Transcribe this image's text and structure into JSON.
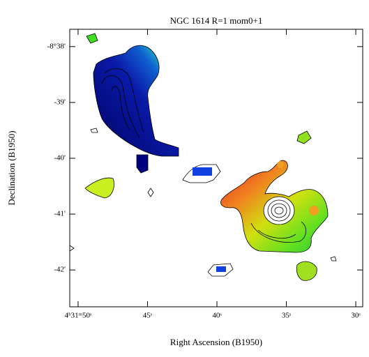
{
  "chart_data": {
    "type": "image",
    "title": "NGC 1614 R=1 mom0+1",
    "x_label": "Right Ascension (B1950)",
    "y_label": "Declination (B1950)",
    "xlim": [
      50.6,
      29.5
    ],
    "ylim": [
      -42.66,
      -37.69
    ],
    "xticks": [
      {
        "value": 50,
        "label": "4ʰ31ᵐ50ˢ"
      },
      {
        "value": 45,
        "label": "45ˢ"
      },
      {
        "value": 40,
        "label": "40ˢ"
      },
      {
        "value": 35,
        "label": "35ˢ"
      },
      {
        "value": 30,
        "label": "30ˢ"
      }
    ],
    "yticks": [
      {
        "value": -38,
        "label": "-8°38'"
      },
      {
        "value": -39,
        "label": "-39'"
      },
      {
        "value": -40,
        "label": "-40'"
      },
      {
        "value": -41,
        "label": "-41'"
      },
      {
        "value": -42,
        "label": "-42'"
      }
    ]
  }
}
